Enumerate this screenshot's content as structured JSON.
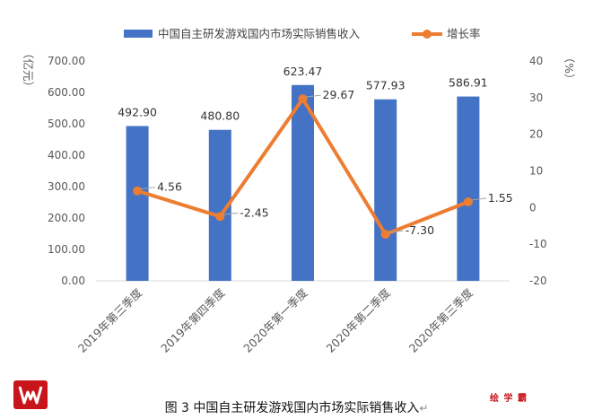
{
  "caption": {
    "label": "图 3",
    "text": "中国自主研发游戏国内市场实际销售收入",
    "return_mark": "↵"
  },
  "watermark_text": "绘 学 霸",
  "logo_icon": "red-logo-icon",
  "colors": {
    "bar": "#4472C4",
    "line": "#ED7D31",
    "axis": "#d9d9d9",
    "text": "#595959"
  },
  "chart_data": {
    "type": "bar",
    "categories": [
      "2019年第三季度",
      "2019年第四季度",
      "2020年第一季度",
      "2020年第二季度",
      "2020年第三季度"
    ],
    "series": [
      {
        "name": "中国自主研发游戏国内市场实际销售收入",
        "type": "bar",
        "axis": "left",
        "values": [
          492.9,
          480.8,
          623.47,
          577.93,
          586.91
        ],
        "labels": [
          "492.90",
          "480.80",
          "623.47",
          "577.93",
          "586.91"
        ]
      },
      {
        "name": "增长率",
        "type": "line",
        "axis": "right",
        "values": [
          4.56,
          -2.45,
          29.67,
          -7.3,
          1.55
        ],
        "labels": [
          "4.56",
          "-2.45",
          "29.67",
          "-7.30",
          "1.55"
        ]
      }
    ],
    "ylabel": "（亿元）",
    "y2label": "（%）",
    "ylim": [
      0,
      700
    ],
    "y_ticks": [
      "0.00",
      "100.00",
      "200.00",
      "300.00",
      "400.00",
      "500.00",
      "600.00",
      "700.00"
    ],
    "y2lim": [
      -20,
      40
    ],
    "y2_ticks": [
      "-20",
      "-10",
      "0",
      "10",
      "20",
      "30",
      "40"
    ],
    "legend_position": "top",
    "grid": false
  }
}
